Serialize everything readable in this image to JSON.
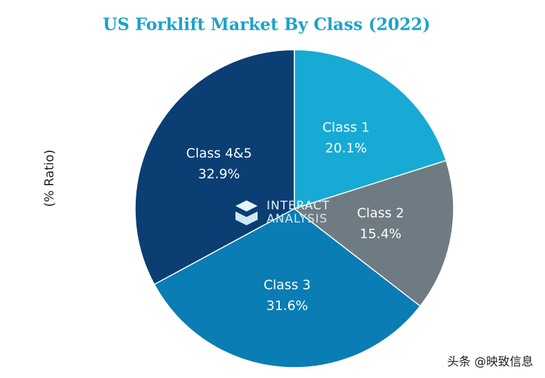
{
  "chart_data": {
    "type": "pie",
    "title": "US Forklift Market By Class (2022)",
    "y_label": "(% Ratio)",
    "categories": [
      "Class 1",
      "Class 2",
      "Class 3",
      "Class 4&5"
    ],
    "values": [
      20.1,
      15.4,
      31.6,
      32.9
    ],
    "value_labels": [
      "20.1%",
      "15.4%",
      "31.6%",
      "32.9%"
    ],
    "colors": [
      "#17aad5",
      "#6f7b82",
      "#0a7db4",
      "#0b3e73"
    ],
    "logo_text": [
      "INTERACT",
      "ANALYSIS"
    ],
    "watermark": "头条 @映致信息"
  }
}
